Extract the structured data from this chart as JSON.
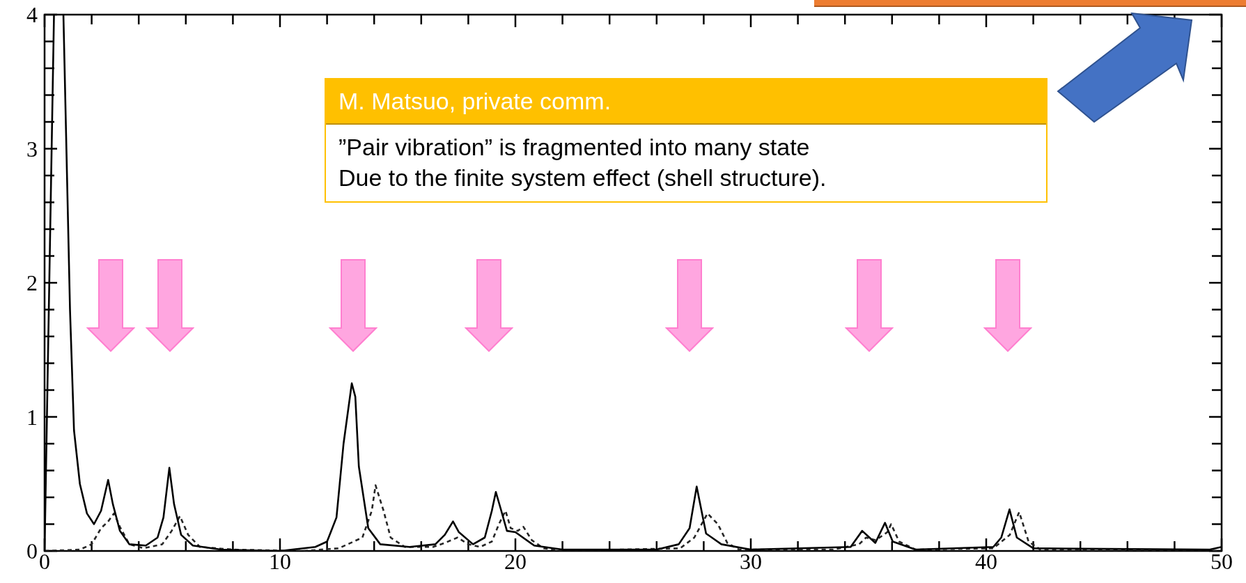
{
  "chart_data": {
    "type": "line",
    "xlim": [
      0,
      50
    ],
    "ylim": [
      0,
      4
    ],
    "xticks": [
      0,
      {
        "value": 2,
        "label": null
      },
      {
        "value": 4,
        "label": null
      },
      {
        "value": 6,
        "label": null
      },
      {
        "value": 8,
        "label": null
      },
      10,
      {
        "value": 12,
        "label": null
      },
      {
        "value": 14,
        "label": null
      },
      {
        "value": 16,
        "label": null
      },
      {
        "value": 18,
        "label": null
      },
      20,
      {
        "value": 22,
        "label": null
      },
      {
        "value": 24,
        "label": null
      },
      {
        "value": 26,
        "label": null
      },
      {
        "value": 28,
        "label": null
      },
      30,
      {
        "value": 32,
        "label": null
      },
      {
        "value": 34,
        "label": null
      },
      {
        "value": 36,
        "label": null
      },
      {
        "value": 38,
        "label": null
      },
      40,
      {
        "value": 42,
        "label": null
      },
      {
        "value": 44,
        "label": null
      },
      {
        "value": 46,
        "label": null
      },
      {
        "value": 48,
        "label": null
      },
      50
    ],
    "yticks": [
      0,
      {
        "value": 0.2,
        "label": null
      },
      {
        "value": 0.4,
        "label": null
      },
      {
        "value": 0.6,
        "label": null
      },
      {
        "value": 0.8,
        "label": null
      },
      1,
      {
        "value": 1.2,
        "label": null
      },
      {
        "value": 1.4,
        "label": null
      },
      {
        "value": 1.6,
        "label": null
      },
      {
        "value": 1.8,
        "label": null
      },
      2,
      {
        "value": 2.2,
        "label": null
      },
      {
        "value": 2.4,
        "label": null
      },
      {
        "value": 2.6,
        "label": null
      },
      {
        "value": 2.8,
        "label": null
      },
      3,
      {
        "value": 3.2,
        "label": null
      },
      {
        "value": 3.4,
        "label": null
      },
      {
        "value": 3.6,
        "label": null
      },
      {
        "value": 3.8,
        "label": null
      },
      4
    ],
    "grid": false,
    "legend": false,
    "marker": "none",
    "annotations": [
      "M. Matsuo, private comm.",
      "”Pair vibration” is fragmented into many state\nDue to the finite system effect (shell structure)."
    ],
    "series": [
      {
        "color": "#000000",
        "line_style": "solid",
        "x": [
          0,
          0.4,
          0.6,
          0.8,
          1.08,
          1.25,
          1.5,
          1.8,
          2.1,
          2.4,
          2.7,
          2.9,
          3.2,
          3.6,
          4.3,
          4.8,
          5.05,
          5.3,
          5.5,
          5.8,
          6.3,
          7.5,
          10,
          11.5,
          12,
          12.4,
          12.7,
          13.05,
          13.2,
          13.35,
          13.75,
          14.26,
          15.5,
          16.6,
          17,
          17.35,
          17.6,
          18.2,
          18.7,
          19,
          19.17,
          19.4,
          19.64,
          20,
          20.8,
          22,
          26,
          26.94,
          27.4,
          27.7,
          28.1,
          28.75,
          30,
          34.24,
          34.73,
          35.29,
          35.7,
          36.03,
          37,
          40.3,
          40.64,
          40.99,
          41.3,
          42,
          49.5,
          50
        ],
        "values": [
          0,
          4,
          null,
          4,
          1.8,
          0.9,
          0.5,
          0.28,
          0.2,
          0.3,
          0.53,
          0.35,
          0.15,
          0.05,
          0.04,
          0.1,
          0.25,
          0.62,
          0.35,
          0.12,
          0.04,
          0.01,
          0,
          0.03,
          0.07,
          0.25,
          0.8,
          1.25,
          1.15,
          0.63,
          0.17,
          0.05,
          0.03,
          0.05,
          0.12,
          0.22,
          0.14,
          0.05,
          0.1,
          0.3,
          0.44,
          0.3,
          0.15,
          0.14,
          0.04,
          0.01,
          0.01,
          0.05,
          0.17,
          0.48,
          0.13,
          0.05,
          0.01,
          0.03,
          0.15,
          0.06,
          0.21,
          0.07,
          0.01,
          0.03,
          0.1,
          0.31,
          0.1,
          0.02,
          0.01,
          0.03
        ]
      },
      {
        "color": "#262626",
        "line_style": "dotted",
        "x": [
          0,
          1.5,
          2,
          2.4,
          2.7,
          2.95,
          3.2,
          3.6,
          4.2,
          5,
          5.4,
          5.75,
          6.1,
          6.6,
          8,
          11,
          12.5,
          13.5,
          13.9,
          14.06,
          14.4,
          14.7,
          15.3,
          16.5,
          17,
          17.54,
          18,
          18.5,
          19,
          19.3,
          19.58,
          19.8,
          20.1,
          20.34,
          20.7,
          21.2,
          22,
          27,
          27.6,
          28.16,
          28.6,
          29,
          29.5,
          33.5,
          34.6,
          34.9,
          35.3,
          35.8,
          35.96,
          36.3,
          37,
          40.3,
          41,
          41.4,
          41.8,
          42.3,
          50
        ],
        "values": [
          0,
          0.01,
          0.05,
          0.17,
          0.22,
          0.28,
          0.18,
          0.05,
          0.02,
          0.05,
          0.15,
          0.26,
          0.12,
          0.03,
          0.01,
          0,
          0.02,
          0.1,
          0.3,
          0.49,
          0.3,
          0.1,
          0.03,
          0.03,
          0.06,
          0.1,
          0.05,
          0.03,
          0.07,
          0.2,
          0.3,
          0.17,
          0.15,
          0.18,
          0.08,
          0.02,
          0,
          0.02,
          0.1,
          0.28,
          0.2,
          0.06,
          0.01,
          0.01,
          0.05,
          0.1,
          0.08,
          0.14,
          0.2,
          0.07,
          0.01,
          0.02,
          0.12,
          0.29,
          0.07,
          0.01,
          0
        ]
      }
    ]
  }
}
